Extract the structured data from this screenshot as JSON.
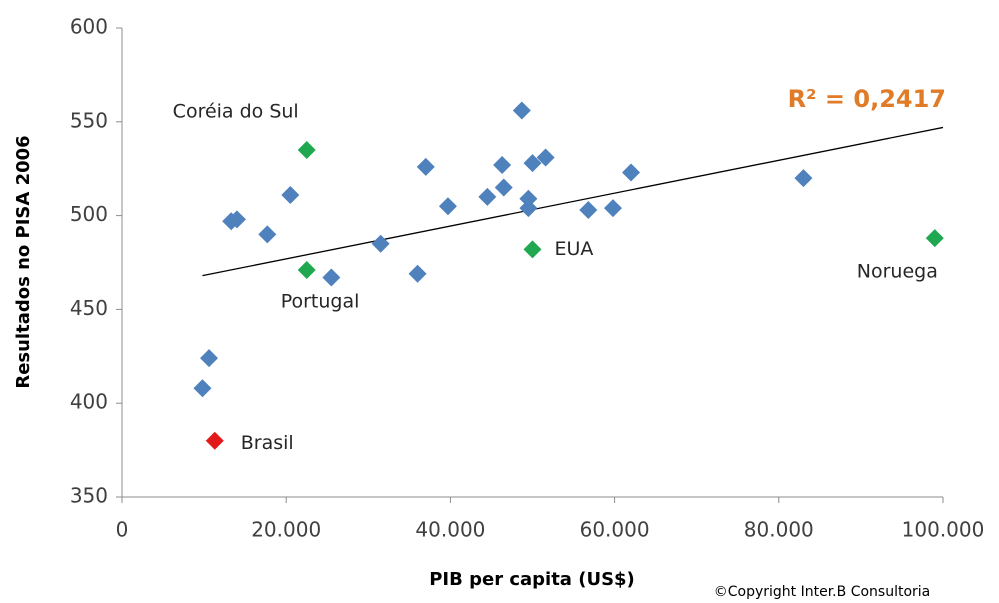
{
  "chart_data": {
    "type": "scatter",
    "x_label": "PIB per capita (US$)",
    "y_label": "Resultados no PISA 2006",
    "annotation": "R² = 0,2417",
    "annotation_color": "#e07b28",
    "copyright": "©Copyright Inter.B Consultoria",
    "xlim": [
      0,
      100000
    ],
    "ylim": [
      350,
      600
    ],
    "xticks": [
      0,
      {
        "value": 20000,
        "label": "20.000"
      },
      {
        "value": 40000,
        "label": "40.000"
      },
      {
        "value": 60000,
        "label": "60.000"
      },
      {
        "value": 80000,
        "label": "80.000"
      },
      {
        "value": 100000,
        "label": "100.000"
      }
    ],
    "yticks": [
      350,
      400,
      450,
      500,
      550,
      600
    ],
    "grid": false,
    "series": [
      {
        "color": "#4f81bd",
        "x": [
          9800,
          10600,
          13300,
          14000,
          17700,
          20500,
          25500,
          31500,
          36000,
          37000,
          39700,
          44500,
          46300,
          46500,
          48700,
          49500,
          49500,
          50000,
          51600,
          56800,
          59800,
          62000,
          83000
        ],
        "y": [
          408,
          424,
          497,
          498,
          490,
          511,
          467,
          485,
          469,
          526,
          505,
          510,
          527,
          515,
          556,
          509,
          504,
          528,
          531,
          503,
          504,
          523,
          520
        ]
      },
      {
        "color": "#1fa84f",
        "x": [
          22500,
          22500,
          50000,
          99000
        ],
        "y": [
          535,
          471,
          482,
          488
        ],
        "labels": [
          "Coréia do Sul",
          "Portugal",
          "EUA",
          "Noruega"
        ]
      },
      {
        "color": "#e31a1c",
        "x": [
          11300
        ],
        "y": [
          380
        ],
        "labels": [
          "Brasil"
        ]
      }
    ],
    "trendline": {
      "color": "#000000",
      "x": [
        9800,
        100000
      ],
      "y": [
        468,
        547
      ]
    }
  }
}
